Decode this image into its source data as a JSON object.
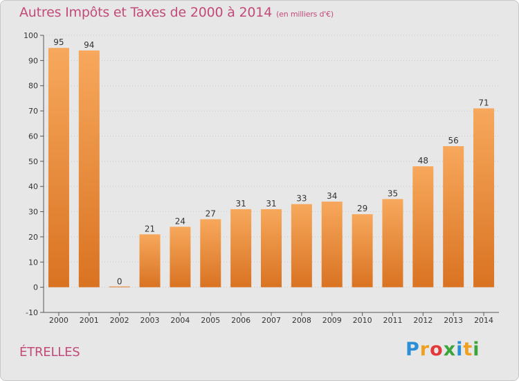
{
  "header": {
    "title": "Autres Impôts et Taxes de 2000 à 2014",
    "unit": "(en milliers d'€)"
  },
  "footer": {
    "city": "ÉTRELLES",
    "brand_letters": [
      "P",
      "r",
      "o",
      "x",
      "i",
      "t",
      "i"
    ],
    "brand_colors": [
      "#2a8fd6",
      "#f0a020",
      "#e23a3a",
      "#3aa53a",
      "#2a8fd6",
      "#f0a020",
      "#3aa53a"
    ]
  },
  "colors": {
    "bar_light": "#f7a85c",
    "bar_dark": "#d97322",
    "title": "#c24a79",
    "grid": "#c9c9c9"
  },
  "chart_data": {
    "type": "bar",
    "title": "Autres Impôts et Taxes de 2000 à 2014",
    "subtitle": "(en milliers d'€)",
    "xlabel": "",
    "ylabel": "",
    "categories": [
      "2000",
      "2001",
      "2002",
      "2003",
      "2004",
      "2005",
      "2006",
      "2007",
      "2008",
      "2009",
      "2010",
      "2011",
      "2012",
      "2013",
      "2014"
    ],
    "values": [
      95,
      94,
      0,
      21,
      24,
      27,
      31,
      31,
      33,
      34,
      29,
      35,
      48,
      56,
      71
    ],
    "ylim": [
      -10,
      100
    ],
    "yticks": [
      -10,
      0,
      10,
      20,
      30,
      40,
      50,
      60,
      70,
      80,
      90,
      100
    ],
    "grid": true,
    "data_labels": true
  }
}
